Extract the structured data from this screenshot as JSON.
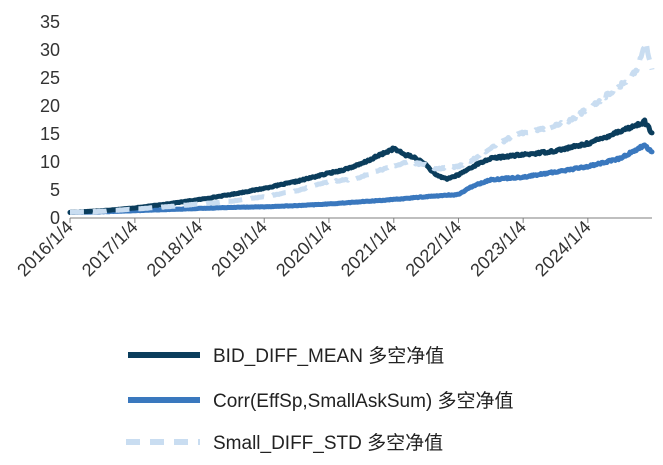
{
  "chart_data": {
    "type": "line",
    "title": "",
    "xlabel": "",
    "ylabel": "",
    "ylim": [
      0,
      35
    ],
    "xlim": [
      "2016-01-04",
      "2024-12-31"
    ],
    "yticks": [
      0,
      5,
      10,
      15,
      20,
      25,
      30,
      35
    ],
    "xticks": [
      "2016/1/4",
      "2017/1/4",
      "2018/1/4",
      "2019/1/4",
      "2020/1/4",
      "2021/1/4",
      "2022/1/4",
      "2023/1/4",
      "2024/1/4"
    ],
    "grid": false,
    "legend_position": "bottom",
    "series": [
      {
        "name": "BID_DIFF_MEAN 多空净值",
        "color": "#0b3d5c",
        "style": "solid",
        "x": [
          "2016-01-04",
          "2016-07-01",
          "2017-01-04",
          "2017-07-01",
          "2018-01-04",
          "2018-07-01",
          "2019-01-04",
          "2019-07-01",
          "2020-01-04",
          "2020-03-15",
          "2020-07-01",
          "2020-10-15",
          "2021-01-04",
          "2021-03-01",
          "2021-05-01",
          "2021-07-01",
          "2021-09-01",
          "2021-11-01",
          "2022-01-04",
          "2022-04-01",
          "2022-07-01",
          "2022-10-01",
          "2023-01-04",
          "2023-04-01",
          "2023-07-01",
          "2023-10-01",
          "2024-01-04",
          "2024-04-01",
          "2024-07-01",
          "2024-10-01",
          "2024-11-20",
          "2024-12-31"
        ],
        "y": [
          1.0,
          1.3,
          1.8,
          2.5,
          3.3,
          4.2,
          5.3,
          6.5,
          8.0,
          8.5,
          9.6,
          11.2,
          12.4,
          11.4,
          10.8,
          9.6,
          7.6,
          7.0,
          7.7,
          9.3,
          10.6,
          11.0,
          11.3,
          11.6,
          12.0,
          12.6,
          13.3,
          14.3,
          15.5,
          16.5,
          17.2,
          15.2
        ]
      },
      {
        "name": "Corr(EffSp,SmallAskSum) 多空净值",
        "color": "#3a78be",
        "style": "solid",
        "x": [
          "2016-01-04",
          "2016-07-01",
          "2017-01-04",
          "2017-07-01",
          "2018-01-04",
          "2018-07-01",
          "2019-01-04",
          "2019-07-01",
          "2020-01-04",
          "2020-07-01",
          "2021-01-04",
          "2021-07-01",
          "2022-01-04",
          "2022-04-01",
          "2022-07-01",
          "2022-10-01",
          "2023-01-04",
          "2023-07-01",
          "2024-01-04",
          "2024-07-01",
          "2024-11-20",
          "2024-12-31"
        ],
        "y": [
          1.0,
          1.1,
          1.3,
          1.5,
          1.7,
          1.9,
          2.0,
          2.2,
          2.5,
          2.9,
          3.3,
          3.8,
          4.2,
          5.8,
          6.8,
          7.1,
          7.3,
          8.2,
          9.2,
          10.6,
          13.0,
          11.8
        ]
      },
      {
        "name": "Small_DIFF_STD 多空净值",
        "color": "#c9ddf1",
        "style": "dashed",
        "x": [
          "2016-01-04",
          "2016-07-01",
          "2017-01-04",
          "2017-07-01",
          "2018-01-04",
          "2018-07-01",
          "2019-01-04",
          "2019-07-01",
          "2020-01-04",
          "2020-06-01",
          "2020-10-15",
          "2021-01-04",
          "2021-04-01",
          "2021-07-01",
          "2021-09-01",
          "2022-01-04",
          "2022-04-01",
          "2022-07-01",
          "2022-10-01",
          "2023-01-04",
          "2023-04-01",
          "2023-07-01",
          "2023-10-01",
          "2024-01-04",
          "2024-04-01",
          "2024-07-01",
          "2024-10-01",
          "2024-11-25",
          "2024-12-31"
        ],
        "y": [
          1.0,
          1.2,
          1.6,
          2.0,
          2.5,
          3.0,
          3.8,
          4.8,
          6.5,
          7.0,
          8.5,
          9.3,
          10.0,
          9.5,
          8.8,
          9.2,
          10.5,
          12.5,
          14.0,
          15.2,
          15.8,
          16.5,
          17.5,
          19.5,
          21.5,
          23.5,
          26.0,
          31.5,
          26.5
        ]
      }
    ]
  }
}
